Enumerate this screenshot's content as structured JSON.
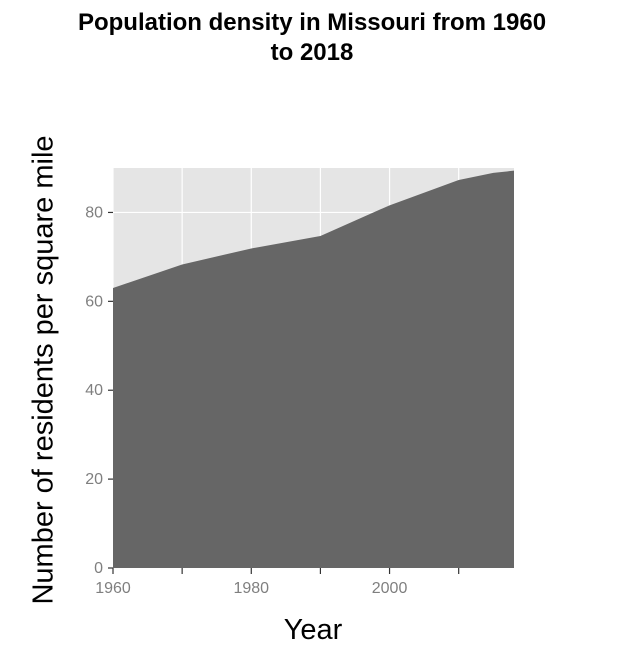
{
  "chart_data": {
    "type": "area",
    "title_lines": [
      "Population density in Missouri from 1960",
      "to 2018"
    ],
    "xlabel": "Year",
    "ylabel": "Number of residents per square mile",
    "x": [
      1960,
      1970,
      1980,
      1990,
      2000,
      2010,
      2015,
      2018
    ],
    "values": [
      63.0,
      68.3,
      71.9,
      74.7,
      81.6,
      87.3,
      88.9,
      89.4
    ],
    "xlim": [
      1960,
      2018
    ],
    "ylim": [
      0,
      90
    ],
    "x_ticks": [
      1960,
      1980,
      2000
    ],
    "x_tick_marks": [
      1960,
      1970,
      1980,
      1990,
      2000,
      2010
    ],
    "y_ticks": [
      0,
      20,
      40,
      60,
      80
    ],
    "grid": true,
    "legend": "none",
    "colors": {
      "area": "#666666",
      "panel": "#e5e5e5",
      "grid": "#ffffff",
      "tick": "#333333",
      "tick_label": "#7f7f7f"
    }
  }
}
